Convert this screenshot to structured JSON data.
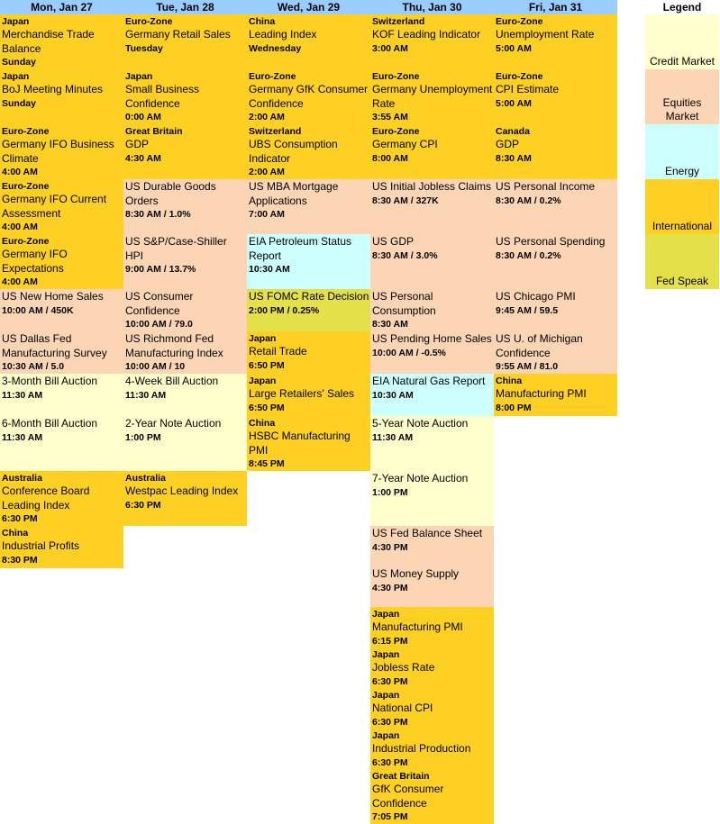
{
  "days": [
    "Mon, Jan 27",
    "Tue, Jan 28",
    "Wed, Jan 29",
    "Thu, Jan 30",
    "Fri, Jan 31"
  ],
  "legend": {
    "title": "Legend",
    "items": [
      {
        "key": "credit",
        "label": "Credit Market",
        "color": "#ffffcc"
      },
      {
        "key": "equities",
        "label": "Equities Market",
        "color": "#fcd5b4"
      },
      {
        "key": "energy",
        "label": "Energy",
        "color": "#ccffff"
      },
      {
        "key": "intl",
        "label": "International",
        "color": "#fdd023"
      },
      {
        "key": "fed",
        "label": "Fed Speak",
        "color": "#e4e04a"
      }
    ]
  },
  "columns": [
    [
      {
        "cat": "intl",
        "region": "Japan",
        "title": "Merchandise Trade Balance",
        "detail": "Sunday"
      },
      {
        "cat": "intl",
        "region": "Japan",
        "title": "BoJ Meeting Minutes",
        "detail": "Sunday"
      },
      {
        "cat": "intl",
        "region": "Euro-Zone",
        "title": "Germany IFO Business Climate",
        "detail": "4:00 AM"
      },
      {
        "cat": "intl",
        "region": "Euro-Zone",
        "title": "Germany IFO Current Assessment",
        "detail": "4:00 AM"
      },
      {
        "cat": "intl",
        "region": "Euro-Zone",
        "title": "Germany IFO Expectations",
        "detail": "4:00 AM"
      },
      {
        "cat": "equities",
        "region": "",
        "title": "US New Home Sales",
        "detail": "10:00 AM / 450K"
      },
      {
        "cat": "equities",
        "region": "",
        "title": "US Dallas Fed Manufacturing Survey",
        "detail": "10:30 AM / 5.0"
      },
      {
        "cat": "credit",
        "region": "",
        "title": "3-Month Bill Auction",
        "detail": "11:30 AM"
      },
      {
        "cat": "credit",
        "region": "",
        "title": "6-Month Bill Auction",
        "detail": "11:30 AM"
      },
      {
        "cat": "intl",
        "region": "Australia",
        "title": "Conference Board Leading Index",
        "detail": "6:30 PM"
      },
      {
        "cat": "intl",
        "region": "China",
        "title": "Industrial Profits",
        "detail": "8:30 PM"
      }
    ],
    [
      {
        "cat": "intl",
        "region": "Euro-Zone",
        "title": "Germany Retail Sales",
        "detail": "Tuesday"
      },
      {
        "cat": "intl",
        "region": "Japan",
        "title": "Small Business Confidence",
        "detail": "0:00 AM"
      },
      {
        "cat": "intl",
        "region": "Great Britain",
        "title": "GDP",
        "detail": "4:30 AM"
      },
      {
        "cat": "equities",
        "region": "",
        "title": "US Durable Goods Orders",
        "detail": "8:30 AM / 1.0%"
      },
      {
        "cat": "equities",
        "region": "",
        "title": "US S&P/Case-Shiller HPI",
        "detail": "9:00 AM / 13.7%"
      },
      {
        "cat": "equities",
        "region": "",
        "title": "US Consumer Confidence",
        "detail": "10:00 AM / 79.0"
      },
      {
        "cat": "equities",
        "region": "",
        "title": "US Richmond Fed Manufacturing Index",
        "detail": "10:00 AM / 10"
      },
      {
        "cat": "credit",
        "region": "",
        "title": "4-Week Bill Auction",
        "detail": "11:30 AM"
      },
      {
        "cat": "credit",
        "region": "",
        "title": "2-Year Note Auction",
        "detail": "1:00 PM"
      },
      {
        "cat": "intl",
        "region": "Australia",
        "title": "Westpac Leading Index",
        "detail": "6:30 PM"
      }
    ],
    [
      {
        "cat": "intl",
        "region": "China",
        "title": "Leading Index",
        "detail": "Wednesday"
      },
      {
        "cat": "intl",
        "region": "Euro-Zone",
        "title": "Germany GfK Consumer Confidence",
        "detail": "2:00 AM"
      },
      {
        "cat": "intl",
        "region": "Switzerland",
        "title": "UBS Consumption Indicator",
        "detail": "2:00 AM"
      },
      {
        "cat": "equities",
        "region": "",
        "title": "US MBA Mortgage Applications",
        "detail": "7:00 AM"
      },
      {
        "cat": "energy",
        "region": "",
        "title": "EIA Petroleum Status Report",
        "detail": "10:30 AM"
      },
      {
        "cat": "fed",
        "region": "",
        "title": "US FOMC Rate Decision",
        "detail": "2:00 PM / 0.25%"
      },
      {
        "cat": "intl",
        "region": "Japan",
        "title": "Retail Trade",
        "detail": "6:50 PM"
      },
      {
        "cat": "intl",
        "region": "Japan",
        "title": "Large Retailers' Sales",
        "detail": "6:50 PM"
      },
      {
        "cat": "intl",
        "region": "China",
        "title": "HSBC Manufacturing PMI",
        "detail": "8:45 PM"
      }
    ],
    [
      {
        "cat": "intl",
        "region": "Switzerland",
        "title": "KOF Leading Indicator",
        "detail": "3:00 AM"
      },
      {
        "cat": "intl",
        "region": "Euro-Zone",
        "title": "Germany Unemployment Rate",
        "detail": "3:55 AM"
      },
      {
        "cat": "intl",
        "region": "Euro-Zone",
        "title": "Germany CPI",
        "detail": "8:00 AM"
      },
      {
        "cat": "equities",
        "region": "",
        "title": "US Initial Jobless Claims",
        "detail": "8:30 AM / 327K"
      },
      {
        "cat": "equities",
        "region": "",
        "title": "US GDP",
        "detail": "8:30 AM / 3.0%"
      },
      {
        "cat": "equities",
        "region": "",
        "title": "US Personal Consumption",
        "detail": "8:30 AM"
      },
      {
        "cat": "equities",
        "region": "",
        "title": "US Pending Home Sales",
        "detail": "10:00 AM / -0.5%"
      },
      {
        "cat": "energy",
        "region": "",
        "title": "EIA Natural Gas Report",
        "detail": "10:30 AM"
      },
      {
        "cat": "credit",
        "region": "",
        "title": "5-Year Note Auction",
        "detail": "11:30 AM"
      },
      {
        "cat": "credit",
        "region": "",
        "title": "7-Year Note Auction",
        "detail": "1:00 PM"
      },
      {
        "cat": "equities",
        "region": "",
        "title": "US Fed Balance Sheet",
        "detail": "4:30 PM"
      },
      {
        "cat": "equities",
        "region": "",
        "title": "US Money Supply",
        "detail": "4:30 PM"
      },
      {
        "cat": "intl",
        "region": "Japan",
        "title": "Manufacturing PMI",
        "detail": "6:15 PM"
      },
      {
        "cat": "intl",
        "region": "Japan",
        "title": "Jobless Rate",
        "detail": "6:30 PM"
      },
      {
        "cat": "intl",
        "region": "Japan",
        "title": "National CPI",
        "detail": "6:30 PM"
      },
      {
        "cat": "intl",
        "region": "Japan",
        "title": "Industrial Production",
        "detail": "6:30 PM"
      },
      {
        "cat": "intl",
        "region": "Great Britain",
        "title": "GfK Consumer Confidence",
        "detail": "7:05 PM"
      }
    ],
    [
      {
        "cat": "intl",
        "region": "Euro-Zone",
        "title": "Unemployment Rate",
        "detail": "5:00 AM"
      },
      {
        "cat": "intl",
        "region": "Euro-Zone",
        "title": "CPI Estimate",
        "detail": "5:00 AM"
      },
      {
        "cat": "intl",
        "region": "Canada",
        "title": "GDP",
        "detail": "8:30 AM"
      },
      {
        "cat": "equities",
        "region": "",
        "title": "US Personal Income",
        "detail": "8:30 AM / 0.2%"
      },
      {
        "cat": "equities",
        "region": "",
        "title": "US Personal Spending",
        "detail": "8:30 AM / 0.2%"
      },
      {
        "cat": "equities",
        "region": "",
        "title": "US Chicago PMI",
        "detail": "9:45 AM / 59.5"
      },
      {
        "cat": "equities",
        "region": "",
        "title": "US U. of Michigan Confidence",
        "detail": "9:55 AM / 81.0"
      },
      {
        "cat": "intl",
        "region": "China",
        "title": "Manufacturing PMI",
        "detail": "8:00 PM"
      }
    ]
  ]
}
